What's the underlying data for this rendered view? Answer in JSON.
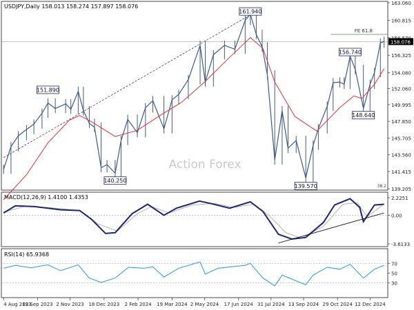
{
  "chart_data": {
    "type": "line",
    "symbol_header": "USDJPY,Daily 158.013 158.274 157.897 158.076",
    "watermark": "Action Forex",
    "price_panel": {
      "y_ticks": [
        163.06,
        160.815,
        158.57,
        156.325,
        154.08,
        152.06,
        149.995,
        147.85,
        145.705,
        143.56,
        141.415,
        139.205
      ],
      "y_tick_labels": [
        "163.060",
        "160.815",
        "158.570",
        "156.325",
        "154.080",
        "152.060",
        "149.995",
        "147.850",
        "145.705",
        "143.560",
        "141.415",
        "139.205"
      ],
      "last_price_label": "158.076",
      "last_price": 158.076,
      "fe_label": "FE 61.8",
      "fe_level": 159.0,
      "corner_label": "38.2",
      "annotations": [
        {
          "label": "151.890",
          "date": "2023-10-03",
          "value": 151.89
        },
        {
          "label": "161.940",
          "date": "2024-07-03",
          "value": 161.94
        },
        {
          "label": "140.250",
          "date": "2024-01-02",
          "value": 140.25
        },
        {
          "label": "139.570",
          "date": "2024-09-16",
          "value": 139.57
        },
        {
          "label": "156.740",
          "date": "2024-11-15",
          "value": 156.74
        },
        {
          "label": "148.640",
          "date": "2024-12-03",
          "value": 148.64
        }
      ],
      "series": [
        {
          "type": "candlestick_close",
          "points": [
            [
              "2023-08-04",
              141.7
            ],
            [
              "2023-08-14",
              144.6
            ],
            [
              "2023-08-24",
              146.0
            ],
            [
              "2023-09-04",
              146.8
            ],
            [
              "2023-09-14",
              147.5
            ],
            [
              "2023-09-25",
              148.9
            ],
            [
              "2023-10-03",
              150.2
            ],
            [
              "2023-10-13",
              149.5
            ],
            [
              "2023-10-27",
              150.1
            ],
            [
              "2023-11-03",
              149.4
            ],
            [
              "2023-11-13",
              151.7
            ],
            [
              "2023-11-20",
              149.2
            ],
            [
              "2023-11-28",
              147.6
            ],
            [
              "2023-12-05",
              147.1
            ],
            [
              "2023-12-14",
              141.9
            ],
            [
              "2023-12-22",
              142.3
            ],
            [
              "2024-01-02",
              141.2
            ],
            [
              "2024-01-10",
              145.4
            ],
            [
              "2024-01-19",
              148.1
            ],
            [
              "2024-02-01",
              146.4
            ],
            [
              "2024-02-12",
              149.6
            ],
            [
              "2024-02-22",
              150.5
            ],
            [
              "2024-03-08",
              146.9
            ],
            [
              "2024-03-19",
              150.6
            ],
            [
              "2024-03-28",
              151.3
            ],
            [
              "2024-04-10",
              153.2
            ],
            [
              "2024-04-26",
              157.6
            ],
            [
              "2024-05-03",
              152.9
            ],
            [
              "2024-05-14",
              156.4
            ],
            [
              "2024-05-29",
              157.6
            ],
            [
              "2024-06-12",
              157.1
            ],
            [
              "2024-06-26",
              160.8
            ],
            [
              "2024-07-03",
              161.6
            ],
            [
              "2024-07-11",
              159.0
            ],
            [
              "2024-07-19",
              157.4
            ],
            [
              "2024-07-26",
              153.8
            ],
            [
              "2024-08-05",
              142.9
            ],
            [
              "2024-08-15",
              149.2
            ],
            [
              "2024-08-23",
              144.4
            ],
            [
              "2024-09-03",
              145.4
            ],
            [
              "2024-09-16",
              140.6
            ],
            [
              "2024-09-26",
              144.8
            ],
            [
              "2024-10-03",
              146.9
            ],
            [
              "2024-10-15",
              149.8
            ],
            [
              "2024-10-23",
              152.8
            ],
            [
              "2024-11-01",
              152.9
            ],
            [
              "2024-11-07",
              152.6
            ],
            [
              "2024-11-15",
              156.2
            ],
            [
              "2024-11-22",
              154.5
            ],
            [
              "2024-12-03",
              149.5
            ],
            [
              "2024-12-12",
              152.6
            ],
            [
              "2024-12-18",
              154.1
            ],
            [
              "2024-12-26",
              157.9
            ],
            [
              "2024-12-31",
              158.1
            ]
          ]
        },
        {
          "type": "moving_average",
          "points": [
            [
              "2023-08-04",
              137.8
            ],
            [
              "2023-09-04",
              141.0
            ],
            [
              "2023-10-03",
              145.1
            ],
            [
              "2023-11-01",
              148.0
            ],
            [
              "2023-11-15",
              148.6
            ],
            [
              "2023-12-01",
              147.8
            ],
            [
              "2024-01-02",
              145.9
            ],
            [
              "2024-02-01",
              146.7
            ],
            [
              "2024-03-01",
              148.5
            ],
            [
              "2024-04-01",
              150.3
            ],
            [
              "2024-05-01",
              152.8
            ],
            [
              "2024-06-01",
              155.7
            ],
            [
              "2024-07-03",
              158.6
            ],
            [
              "2024-07-20",
              157.2
            ],
            [
              "2024-08-05",
              152.9
            ],
            [
              "2024-09-01",
              148.5
            ],
            [
              "2024-10-01",
              146.6
            ],
            [
              "2024-11-01",
              149.6
            ],
            [
              "2024-11-20",
              151.1
            ],
            [
              "2024-12-01",
              150.8
            ],
            [
              "2024-12-18",
              152.6
            ],
            [
              "2024-12-31",
              154.6
            ]
          ]
        }
      ]
    },
    "macd_panel": {
      "label": "MACD(12,26,9) 1.4100 1.4353",
      "y_ticks": [
        2.2251,
        0.0,
        -3.6133
      ],
      "y_tick_labels": [
        "2.2251",
        "0.00",
        "-3.6133"
      ],
      "series": [
        {
          "type": "macd",
          "points": [
            [
              "2023-08-04",
              0.3
            ],
            [
              "2023-08-20",
              1.2
            ],
            [
              "2023-09-15",
              1.1
            ],
            [
              "2023-10-03",
              0.9
            ],
            [
              "2023-10-20",
              0.7
            ],
            [
              "2023-11-15",
              0.6
            ],
            [
              "2023-12-01",
              -0.5
            ],
            [
              "2023-12-20",
              -2.3
            ],
            [
              "2024-01-02",
              -2.2
            ],
            [
              "2024-01-25",
              0.2
            ],
            [
              "2024-02-15",
              1.4
            ],
            [
              "2024-03-08",
              0.0
            ],
            [
              "2024-03-25",
              0.9
            ],
            [
              "2024-04-25",
              1.8
            ],
            [
              "2024-05-10",
              1.5
            ],
            [
              "2024-06-05",
              0.9
            ],
            [
              "2024-07-03",
              1.7
            ],
            [
              "2024-07-20",
              0.5
            ],
            [
              "2024-08-10",
              -2.4
            ],
            [
              "2024-08-28",
              -3.0
            ],
            [
              "2024-09-16",
              -2.8
            ],
            [
              "2024-10-10",
              -0.9
            ],
            [
              "2024-10-25",
              1.3
            ],
            [
              "2024-11-15",
              2.1
            ],
            [
              "2024-11-28",
              1.0
            ],
            [
              "2024-12-03",
              -0.8
            ],
            [
              "2024-12-18",
              1.3
            ],
            [
              "2024-12-31",
              1.4
            ]
          ]
        },
        {
          "type": "signal",
          "points": [
            [
              "2023-08-04",
              0.4
            ],
            [
              "2023-09-01",
              1.1
            ],
            [
              "2023-10-03",
              1.0
            ],
            [
              "2023-11-15",
              0.6
            ],
            [
              "2023-12-10",
              -1.1
            ],
            [
              "2024-01-05",
              -2.0
            ],
            [
              "2024-02-01",
              0.2
            ],
            [
              "2024-02-20",
              1.1
            ],
            [
              "2024-03-15",
              0.3
            ],
            [
              "2024-04-15",
              1.3
            ],
            [
              "2024-05-15",
              1.5
            ],
            [
              "2024-06-10",
              1.0
            ],
            [
              "2024-07-08",
              1.4
            ],
            [
              "2024-07-28",
              0.0
            ],
            [
              "2024-08-20",
              -2.2
            ],
            [
              "2024-09-10",
              -2.9
            ],
            [
              "2024-10-10",
              -1.4
            ],
            [
              "2024-11-05",
              1.4
            ],
            [
              "2024-11-25",
              1.6
            ],
            [
              "2024-12-08",
              -0.2
            ],
            [
              "2024-12-31",
              1.43
            ]
          ]
        },
        {
          "type": "trendline",
          "points": [
            [
              "2024-08-10",
              -3.5
            ],
            [
              "2024-12-31",
              0.3
            ]
          ]
        }
      ]
    },
    "rsi_panel": {
      "label": "RSI(14) 65.9368",
      "y_ticks": [
        70,
        50,
        30
      ],
      "y_tick_labels": [
        "70",
        "50",
        "30"
      ],
      "series": [
        {
          "type": "rsi",
          "points": [
            [
              "2023-08-04",
              60
            ],
            [
              "2023-08-20",
              66
            ],
            [
              "2023-09-10",
              61
            ],
            [
              "2023-10-03",
              67
            ],
            [
              "2023-10-20",
              55
            ],
            [
              "2023-11-13",
              67
            ],
            [
              "2023-11-28",
              40
            ],
            [
              "2023-12-14",
              31
            ],
            [
              "2024-01-02",
              40
            ],
            [
              "2024-01-20",
              62
            ],
            [
              "2024-02-10",
              60
            ],
            [
              "2024-02-22",
              63
            ],
            [
              "2024-03-08",
              42
            ],
            [
              "2024-03-28",
              60
            ],
            [
              "2024-04-26",
              73
            ],
            [
              "2024-05-03",
              48
            ],
            [
              "2024-05-20",
              60
            ],
            [
              "2024-06-26",
              66
            ],
            [
              "2024-07-03",
              70
            ],
            [
              "2024-07-20",
              40
            ],
            [
              "2024-08-05",
              24
            ],
            [
              "2024-08-15",
              46
            ],
            [
              "2024-09-16",
              26
            ],
            [
              "2024-09-26",
              46
            ],
            [
              "2024-10-15",
              62
            ],
            [
              "2024-11-01",
              58
            ],
            [
              "2024-11-15",
              68
            ],
            [
              "2024-12-03",
              40
            ],
            [
              "2024-12-18",
              58
            ],
            [
              "2024-12-31",
              66
            ]
          ]
        }
      ]
    },
    "x_tick_labels": [
      "4 Aug 2023",
      "19 Sep 2023",
      "2 Nov 2023",
      "18 Dec 2023",
      "2 Feb 2024",
      "19 Mar 2024",
      "2 May 2024",
      "17 Jun 2024",
      "31 Jul 2024",
      "13 Sep 2024",
      "29 Oct 2024",
      "12 Dec 2024"
    ],
    "x_tick_dates": [
      "2023-08-04",
      "2023-09-19",
      "2023-11-02",
      "2023-12-18",
      "2024-02-02",
      "2024-03-19",
      "2024-05-02",
      "2024-06-17",
      "2024-07-31",
      "2024-09-13",
      "2024-10-29",
      "2024-12-12"
    ],
    "x_range": [
      "2023-08-01",
      "2025-01-05"
    ],
    "price_range": [
      139.205,
      163.06
    ],
    "macd_range": [
      -3.6133,
      2.2251
    ],
    "rsi_range": [
      0,
      100
    ],
    "colors": {
      "candle": "#3d5a85",
      "moving_average": "#e03030",
      "macd": "#1a237e",
      "signal": "#a0a0a0",
      "rsi": "#2196f3",
      "trendline": "#000000",
      "annotation_border": "#1a237e",
      "fe_line": "#6d8f6d"
    }
  }
}
